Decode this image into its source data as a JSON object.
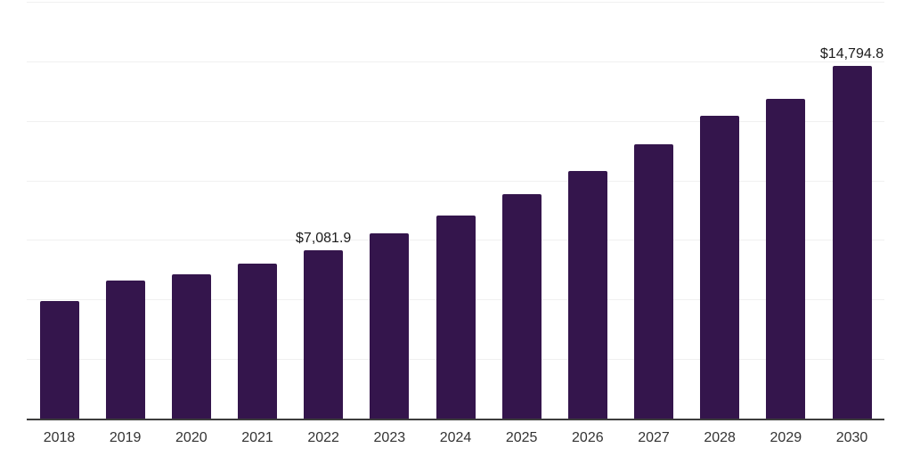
{
  "chart_data": {
    "type": "bar",
    "title": "",
    "xlabel": "",
    "ylabel": "",
    "categories": [
      "2018",
      "2019",
      "2020",
      "2021",
      "2022",
      "2023",
      "2024",
      "2025",
      "2026",
      "2027",
      "2028",
      "2029",
      "2030"
    ],
    "values": [
      4940,
      5780,
      6060,
      6520,
      7081.9,
      7760,
      8510,
      9440,
      10400,
      11520,
      12710,
      13430,
      14794.8
    ],
    "bar_labels": [
      "",
      "",
      "",
      "",
      "$7,081.9",
      "",
      "",
      "",
      "",
      "",
      "",
      "",
      "$14,794.8"
    ],
    "ylim": [
      0,
      17500
    ],
    "gridline_step": 2500,
    "grid": true,
    "legend": false,
    "y_axis_labels_visible": false,
    "colors": {
      "bar": "#34154c",
      "gridline": "#f0f0f0",
      "axis_line": "#3d3d3d",
      "tick_label": "#333333",
      "value_label": "#1b1b1b",
      "background": "#ffffff"
    }
  }
}
